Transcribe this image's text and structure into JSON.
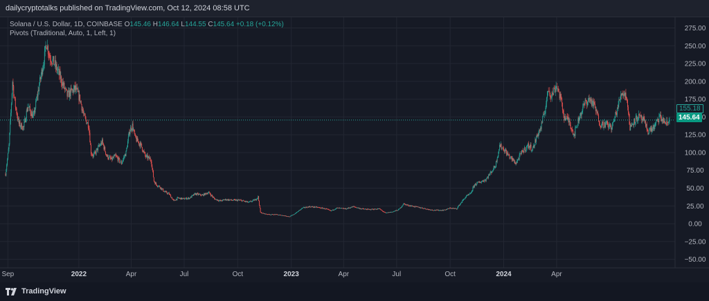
{
  "header": {
    "published_text": "dailycryptotalks published on TradingView.com, Oct 12, 2024 08:58 UTC"
  },
  "legend": {
    "symbol": "Solana / U.S. Dollar, 1D, COINBASE",
    "o_label": "O",
    "o_value": "145.46",
    "h_label": "H",
    "h_value": "146.64",
    "l_label": "L",
    "l_value": "144.55",
    "c_label": "C",
    "c_value": "145.64",
    "change": "+0.18 (+0.12%)",
    "indicator": "Pivots (Traditional, Auto, 1, Left, 1)"
  },
  "price_tags": {
    "pivot": "155.18",
    "last": "145.64"
  },
  "footer": {
    "brand": "TradingView"
  },
  "colors": {
    "background": "#161a25",
    "up": "#26a69a",
    "down": "#ef5350",
    "grid": "#232733",
    "axis_text": "#b2b5be"
  },
  "chart_data": {
    "type": "candlestick",
    "symbol": "SOL/USD",
    "timeframe": "1D",
    "exchange": "COINBASE",
    "ylim": [
      -62,
      290
    ],
    "y_ticks": [
      275,
      250,
      225,
      200,
      175,
      150,
      125,
      100,
      75,
      50,
      25,
      0,
      -25,
      -50
    ],
    "y_tick_labels": [
      "275.00",
      "250.00",
      "225.00",
      "200.00",
      "175.00",
      "150.00",
      "125.00",
      "100.00",
      "75.00",
      "50.00",
      "25.00",
      "0.00",
      "−25.00",
      "−50.00"
    ],
    "x_range": [
      "2021-08-28",
      "2024-10-12"
    ],
    "x_ticks": [
      {
        "date": "2021-09-01",
        "label": "Sep"
      },
      {
        "date": "2022-01-01",
        "label": "2022"
      },
      {
        "date": "2022-04-01",
        "label": "Apr"
      },
      {
        "date": "2022-07-01",
        "label": "Jul"
      },
      {
        "date": "2022-10-01",
        "label": "Oct"
      },
      {
        "date": "2023-01-01",
        "label": "2023"
      },
      {
        "date": "2023-04-01",
        "label": "Apr"
      },
      {
        "date": "2023-07-01",
        "label": "Jul"
      },
      {
        "date": "2023-10-01",
        "label": "Oct"
      },
      {
        "date": "2024-01-01",
        "label": "2024"
      },
      {
        "date": "2024-04-01",
        "label": "Apr"
      }
    ],
    "grid": true,
    "last_price": 145.64,
    "pivot_level": 155.18,
    "close_path": [
      [
        "2021-08-28",
        70
      ],
      [
        "2021-09-03",
        110
      ],
      [
        "2021-09-09",
        200
      ],
      [
        "2021-09-13",
        170
      ],
      [
        "2021-09-20",
        140
      ],
      [
        "2021-09-28",
        135
      ],
      [
        "2021-10-05",
        165
      ],
      [
        "2021-10-15",
        150
      ],
      [
        "2021-10-25",
        195
      ],
      [
        "2021-11-03",
        235
      ],
      [
        "2021-11-06",
        255
      ],
      [
        "2021-11-12",
        235
      ],
      [
        "2021-11-20",
        225
      ],
      [
        "2021-11-28",
        210
      ],
      [
        "2021-12-05",
        195
      ],
      [
        "2021-12-12",
        180
      ],
      [
        "2021-12-18",
        185
      ],
      [
        "2021-12-26",
        190
      ],
      [
        "2022-01-03",
        175
      ],
      [
        "2022-01-10",
        150
      ],
      [
        "2022-01-18",
        138
      ],
      [
        "2022-01-22",
        100
      ],
      [
        "2022-01-26",
        95
      ],
      [
        "2022-02-02",
        105
      ],
      [
        "2022-02-10",
        115
      ],
      [
        "2022-02-18",
        95
      ],
      [
        "2022-02-26",
        90
      ],
      [
        "2022-03-05",
        95
      ],
      [
        "2022-03-15",
        85
      ],
      [
        "2022-03-23",
        100
      ],
      [
        "2022-03-29",
        130
      ],
      [
        "2022-04-03",
        138
      ],
      [
        "2022-04-08",
        120
      ],
      [
        "2022-04-18",
        110
      ],
      [
        "2022-04-25",
        95
      ],
      [
        "2022-05-05",
        90
      ],
      [
        "2022-05-10",
        60
      ],
      [
        "2022-05-14",
        55
      ],
      [
        "2022-05-20",
        52
      ],
      [
        "2022-05-28",
        45
      ],
      [
        "2022-06-05",
        42
      ],
      [
        "2022-06-13",
        32
      ],
      [
        "2022-06-20",
        36
      ],
      [
        "2022-06-30",
        35
      ],
      [
        "2022-07-10",
        36
      ],
      [
        "2022-07-20",
        42
      ],
      [
        "2022-08-01",
        40
      ],
      [
        "2022-08-12",
        44
      ],
      [
        "2022-08-22",
        35
      ],
      [
        "2022-09-01",
        32
      ],
      [
        "2022-09-10",
        34
      ],
      [
        "2022-09-22",
        33
      ],
      [
        "2022-10-05",
        33
      ],
      [
        "2022-10-20",
        30
      ],
      [
        "2022-11-01",
        34
      ],
      [
        "2022-11-05",
        38
      ],
      [
        "2022-11-09",
        16
      ],
      [
        "2022-11-15",
        14
      ],
      [
        "2022-11-25",
        13
      ],
      [
        "2022-12-05",
        13
      ],
      [
        "2022-12-15",
        12
      ],
      [
        "2022-12-29",
        10
      ],
      [
        "2023-01-05",
        13
      ],
      [
        "2023-01-12",
        17
      ],
      [
        "2023-01-20",
        22
      ],
      [
        "2023-02-01",
        24
      ],
      [
        "2023-02-15",
        23
      ],
      [
        "2023-03-01",
        21
      ],
      [
        "2023-03-10",
        18
      ],
      [
        "2023-03-20",
        22
      ],
      [
        "2023-04-05",
        21
      ],
      [
        "2023-04-18",
        24
      ],
      [
        "2023-05-01",
        21
      ],
      [
        "2023-05-15",
        20
      ],
      [
        "2023-06-01",
        21
      ],
      [
        "2023-06-12",
        15
      ],
      [
        "2023-06-25",
        17
      ],
      [
        "2023-07-05",
        20
      ],
      [
        "2023-07-13",
        28
      ],
      [
        "2023-07-20",
        26
      ],
      [
        "2023-08-01",
        24
      ],
      [
        "2023-08-15",
        22
      ],
      [
        "2023-08-25",
        20
      ],
      [
        "2023-09-05",
        19
      ],
      [
        "2023-09-20",
        19
      ],
      [
        "2023-10-01",
        22
      ],
      [
        "2023-10-12",
        21
      ],
      [
        "2023-10-20",
        30
      ],
      [
        "2023-10-28",
        38
      ],
      [
        "2023-11-05",
        42
      ],
      [
        "2023-11-12",
        55
      ],
      [
        "2023-11-20",
        58
      ],
      [
        "2023-12-01",
        62
      ],
      [
        "2023-12-10",
        72
      ],
      [
        "2023-12-18",
        82
      ],
      [
        "2023-12-25",
        110
      ],
      [
        "2024-01-01",
        105
      ],
      [
        "2024-01-10",
        95
      ],
      [
        "2024-01-22",
        85
      ],
      [
        "2024-02-01",
        100
      ],
      [
        "2024-02-12",
        110
      ],
      [
        "2024-02-20",
        105
      ],
      [
        "2024-02-28",
        125
      ],
      [
        "2024-03-05",
        135
      ],
      [
        "2024-03-12",
        160
      ],
      [
        "2024-03-18",
        190
      ],
      [
        "2024-03-23",
        180
      ],
      [
        "2024-04-01",
        195
      ],
      [
        "2024-04-08",
        175
      ],
      [
        "2024-04-14",
        150
      ],
      [
        "2024-04-22",
        145
      ],
      [
        "2024-05-01",
        125
      ],
      [
        "2024-05-10",
        150
      ],
      [
        "2024-05-20",
        170
      ],
      [
        "2024-05-28",
        175
      ],
      [
        "2024-06-05",
        165
      ],
      [
        "2024-06-15",
        140
      ],
      [
        "2024-06-25",
        140
      ],
      [
        "2024-07-05",
        135
      ],
      [
        "2024-07-12",
        155
      ],
      [
        "2024-07-22",
        185
      ],
      [
        "2024-07-30",
        180
      ],
      [
        "2024-08-05",
        135
      ],
      [
        "2024-08-12",
        145
      ],
      [
        "2024-08-20",
        150
      ],
      [
        "2024-08-28",
        145
      ],
      [
        "2024-09-05",
        130
      ],
      [
        "2024-09-15",
        135
      ],
      [
        "2024-09-25",
        150
      ],
      [
        "2024-10-01",
        145
      ],
      [
        "2024-10-08",
        140
      ],
      [
        "2024-10-12",
        145.64
      ]
    ]
  }
}
